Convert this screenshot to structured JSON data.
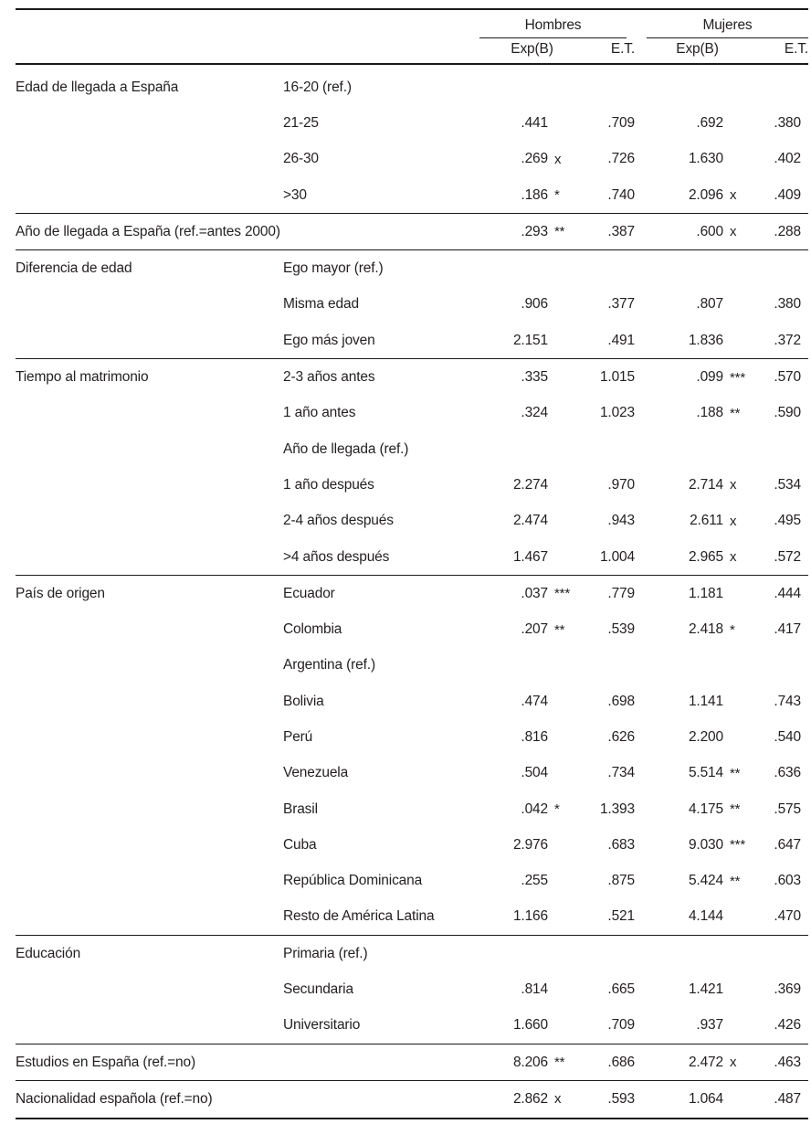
{
  "header": {
    "groups": [
      {
        "label": "Hombres"
      },
      {
        "label": "Mujeres"
      }
    ],
    "subcolumns": [
      "Exp(B)",
      "E.T.",
      "Exp(B)",
      "E.T."
    ]
  },
  "table": {
    "sections": [
      {
        "rows": [
          {
            "variable": "Edad de llegada a España",
            "category": "16-20 (ref.)",
            "h_expb": "",
            "h_sig": "",
            "h_et": "",
            "m_expb": "",
            "m_sig": "",
            "m_et": ""
          },
          {
            "variable": "",
            "category": "21-25",
            "h_expb": ".441",
            "h_sig": "",
            "h_et": ".709",
            "m_expb": ".692",
            "m_sig": "",
            "m_et": ".380"
          },
          {
            "variable": "",
            "category": "26-30",
            "h_expb": ".269",
            "h_sig": "x",
            "h_et": ".726",
            "m_expb": "1.630",
            "m_sig": "",
            "m_et": ".402"
          },
          {
            "variable": "",
            "category": ">30",
            "h_expb": ".186",
            "h_sig": "*",
            "h_et": ".740",
            "m_expb": "2.096",
            "m_sig": "x",
            "m_et": ".409"
          }
        ]
      },
      {
        "rows": [
          {
            "variable": "Año de llegada a España (ref.=antes 2000)",
            "category": "",
            "h_expb": ".293",
            "h_sig": "**",
            "h_et": ".387",
            "m_expb": ".600",
            "m_sig": "x",
            "m_et": ".288"
          }
        ]
      },
      {
        "rows": [
          {
            "variable": "Diferencia de edad",
            "category": "Ego mayor (ref.)",
            "h_expb": "",
            "h_sig": "",
            "h_et": "",
            "m_expb": "",
            "m_sig": "",
            "m_et": ""
          },
          {
            "variable": "",
            "category": "Misma edad",
            "h_expb": ".906",
            "h_sig": "",
            "h_et": ".377",
            "m_expb": ".807",
            "m_sig": "",
            "m_et": ".380"
          },
          {
            "variable": "",
            "category": "Ego más joven",
            "h_expb": "2.151",
            "h_sig": "",
            "h_et": ".491",
            "m_expb": "1.836",
            "m_sig": "",
            "m_et": ".372"
          }
        ]
      },
      {
        "rows": [
          {
            "variable": "Tiempo al matrimonio",
            "category": "2-3 años antes",
            "h_expb": ".335",
            "h_sig": "",
            "h_et": "1.015",
            "m_expb": ".099",
            "m_sig": "***",
            "m_et": ".570"
          },
          {
            "variable": "",
            "category": "1 año antes",
            "h_expb": ".324",
            "h_sig": "",
            "h_et": "1.023",
            "m_expb": ".188",
            "m_sig": "**",
            "m_et": ".590"
          },
          {
            "variable": "",
            "category": "Año de llegada (ref.)",
            "h_expb": "",
            "h_sig": "",
            "h_et": "",
            "m_expb": "",
            "m_sig": "",
            "m_et": ""
          },
          {
            "variable": "",
            "category": "1 año después",
            "h_expb": "2.274",
            "h_sig": "",
            "h_et": ".970",
            "m_expb": "2.714",
            "m_sig": "x",
            "m_et": ".534"
          },
          {
            "variable": "",
            "category": "2-4 años después",
            "h_expb": "2.474",
            "h_sig": "",
            "h_et": ".943",
            "m_expb": "2.611",
            "m_sig": "x",
            "m_et": ".495"
          },
          {
            "variable": "",
            "category": ">4 años después",
            "h_expb": "1.467",
            "h_sig": "",
            "h_et": "1.004",
            "m_expb": "2.965",
            "m_sig": "x",
            "m_et": ".572"
          }
        ]
      },
      {
        "rows": [
          {
            "variable": "País de origen",
            "category": "Ecuador",
            "h_expb": ".037",
            "h_sig": "***",
            "h_et": ".779",
            "m_expb": "1.181",
            "m_sig": "",
            "m_et": ".444"
          },
          {
            "variable": "",
            "category": "Colombia",
            "h_expb": ".207",
            "h_sig": "**",
            "h_et": ".539",
            "m_expb": "2.418",
            "m_sig": "*",
            "m_et": ".417"
          },
          {
            "variable": "",
            "category": "Argentina (ref.)",
            "h_expb": "",
            "h_sig": "",
            "h_et": "",
            "m_expb": "",
            "m_sig": "",
            "m_et": ""
          },
          {
            "variable": "",
            "category": "Bolivia",
            "h_expb": ".474",
            "h_sig": "",
            "h_et": ".698",
            "m_expb": "1.141",
            "m_sig": "",
            "m_et": ".743"
          },
          {
            "variable": "",
            "category": "Perú",
            "h_expb": ".816",
            "h_sig": "",
            "h_et": ".626",
            "m_expb": "2.200",
            "m_sig": "",
            "m_et": ".540"
          },
          {
            "variable": "",
            "category": "Venezuela",
            "h_expb": ".504",
            "h_sig": "",
            "h_et": ".734",
            "m_expb": "5.514",
            "m_sig": "**",
            "m_et": ".636"
          },
          {
            "variable": "",
            "category": "Brasil",
            "h_expb": ".042",
            "h_sig": "*",
            "h_et": "1.393",
            "m_expb": "4.175",
            "m_sig": "**",
            "m_et": ".575"
          },
          {
            "variable": "",
            "category": "Cuba",
            "h_expb": "2.976",
            "h_sig": "",
            "h_et": ".683",
            "m_expb": "9.030",
            "m_sig": "***",
            "m_et": ".647"
          },
          {
            "variable": "",
            "category": "República Dominicana",
            "h_expb": ".255",
            "h_sig": "",
            "h_et": ".875",
            "m_expb": "5.424",
            "m_sig": "**",
            "m_et": ".603"
          },
          {
            "variable": "",
            "category": "Resto de América Latina",
            "h_expb": "1.166",
            "h_sig": "",
            "h_et": ".521",
            "m_expb": "4.144",
            "m_sig": "",
            "m_et": ".470"
          }
        ]
      },
      {
        "rows": [
          {
            "variable": "Educación",
            "category": "Primaria (ref.)",
            "h_expb": "",
            "h_sig": "",
            "h_et": "",
            "m_expb": "",
            "m_sig": "",
            "m_et": ""
          },
          {
            "variable": "",
            "category": "Secundaria",
            "h_expb": ".814",
            "h_sig": "",
            "h_et": ".665",
            "m_expb": "1.421",
            "m_sig": "",
            "m_et": ".369"
          },
          {
            "variable": "",
            "category": "Universitario",
            "h_expb": "1.660",
            "h_sig": "",
            "h_et": ".709",
            "m_expb": ".937",
            "m_sig": "",
            "m_et": ".426"
          }
        ]
      },
      {
        "rows": [
          {
            "variable": "Estudios en España (ref.=no)",
            "category": "",
            "h_expb": "8.206",
            "h_sig": "**",
            "h_et": ".686",
            "m_expb": "2.472",
            "m_sig": "x",
            "m_et": ".463"
          }
        ]
      },
      {
        "rows": [
          {
            "variable": "Nacionalidad española (ref.=no)",
            "category": "",
            "h_expb": "2.862",
            "h_sig": "x",
            "h_et": ".593",
            "m_expb": "1.064",
            "m_sig": "",
            "m_et": ".487"
          }
        ]
      }
    ]
  }
}
